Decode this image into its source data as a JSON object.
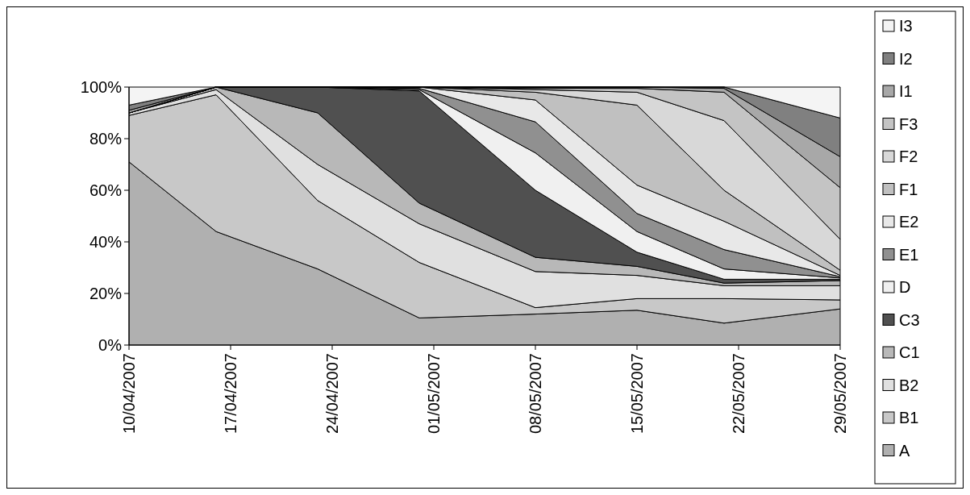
{
  "chart_data": {
    "type": "area",
    "stacked": true,
    "legend": "right",
    "grid": false,
    "x": [
      "2007-04-10",
      "2007-04-16",
      "2007-04-23",
      "2007-04-30",
      "2007-05-08",
      "2007-05-15",
      "2007-05-21",
      "2007-05-29"
    ],
    "xlim": [
      "2007-04-10",
      "2007-05-29"
    ],
    "xticks": [
      {
        "value": "2007-04-10",
        "label": "10/04/2007"
      },
      {
        "value": "2007-04-17",
        "label": "17/04/2007"
      },
      {
        "value": "2007-04-24",
        "label": "24/04/2007"
      },
      {
        "value": "2007-05-01",
        "label": "01/05/2007"
      },
      {
        "value": "2007-05-08",
        "label": "08/05/2007"
      },
      {
        "value": "2007-05-15",
        "label": "15/05/2007"
      },
      {
        "value": "2007-05-22",
        "label": "22/05/2007"
      },
      {
        "value": "2007-05-29",
        "label": "29/05/2007"
      }
    ],
    "ylim": [
      0,
      100
    ],
    "yticks": [
      {
        "value": 0,
        "label": "0%"
      },
      {
        "value": 20,
        "label": "20%"
      },
      {
        "value": 40,
        "label": "40%"
      },
      {
        "value": 60,
        "label": "60%"
      },
      {
        "value": 80,
        "label": "80%"
      },
      {
        "value": 100,
        "label": "100%"
      }
    ],
    "series": [
      {
        "name": "A",
        "color": "#b0b0b0",
        "values": [
          71,
          44,
          29.5,
          10.5,
          12,
          13.5,
          8.5,
          14
        ]
      },
      {
        "name": "B1",
        "color": "#c8c8c8",
        "values": [
          18,
          53,
          26.5,
          21.5,
          2.5,
          4.5,
          9.5,
          3.5
        ]
      },
      {
        "name": "B2",
        "color": "#e0e0e0",
        "values": [
          1,
          2,
          14,
          15,
          14,
          9,
          5,
          5.5
        ]
      },
      {
        "name": "C1",
        "color": "#b8b8b8",
        "values": [
          0,
          1,
          20,
          8,
          5.5,
          3.5,
          1,
          2
        ]
      },
      {
        "name": "C3",
        "color": "#505050",
        "values": [
          0,
          0,
          10,
          43.5,
          26,
          5.5,
          1.5,
          0.5
        ]
      },
      {
        "name": "D",
        "color": "#f0f0f0",
        "values": [
          0,
          0,
          0,
          0.5,
          14.5,
          8,
          4,
          0.5
        ]
      },
      {
        "name": "E1",
        "color": "#909090",
        "values": [
          0,
          0,
          0,
          0.5,
          12,
          7,
          7.5,
          0.5
        ]
      },
      {
        "name": "E2",
        "color": "#e8e8e8",
        "values": [
          0,
          0,
          0,
          0.5,
          8.5,
          11,
          11,
          0.5
        ]
      },
      {
        "name": "F1",
        "color": "#c0c0c0",
        "values": [
          0,
          0,
          0,
          0,
          3,
          31,
          12,
          2
        ]
      },
      {
        "name": "F2",
        "color": "#d8d8d8",
        "values": [
          0,
          0,
          0,
          0,
          1,
          5,
          27,
          12
        ]
      },
      {
        "name": "F3",
        "color": "#c4c4c4",
        "values": [
          0,
          0,
          0,
          0,
          0.5,
          1.5,
          11,
          20
        ]
      },
      {
        "name": "I1",
        "color": "#a8a8a8",
        "values": [
          1,
          0,
          0,
          0,
          0.5,
          0.5,
          1.5,
          12
        ]
      },
      {
        "name": "I2",
        "color": "#808080",
        "values": [
          2,
          0,
          0,
          0,
          0,
          0,
          0.5,
          15
        ]
      },
      {
        "name": "I3",
        "color": "#f4f4f4",
        "values": [
          7,
          0,
          0,
          0,
          0,
          0,
          0,
          12
        ]
      }
    ]
  }
}
